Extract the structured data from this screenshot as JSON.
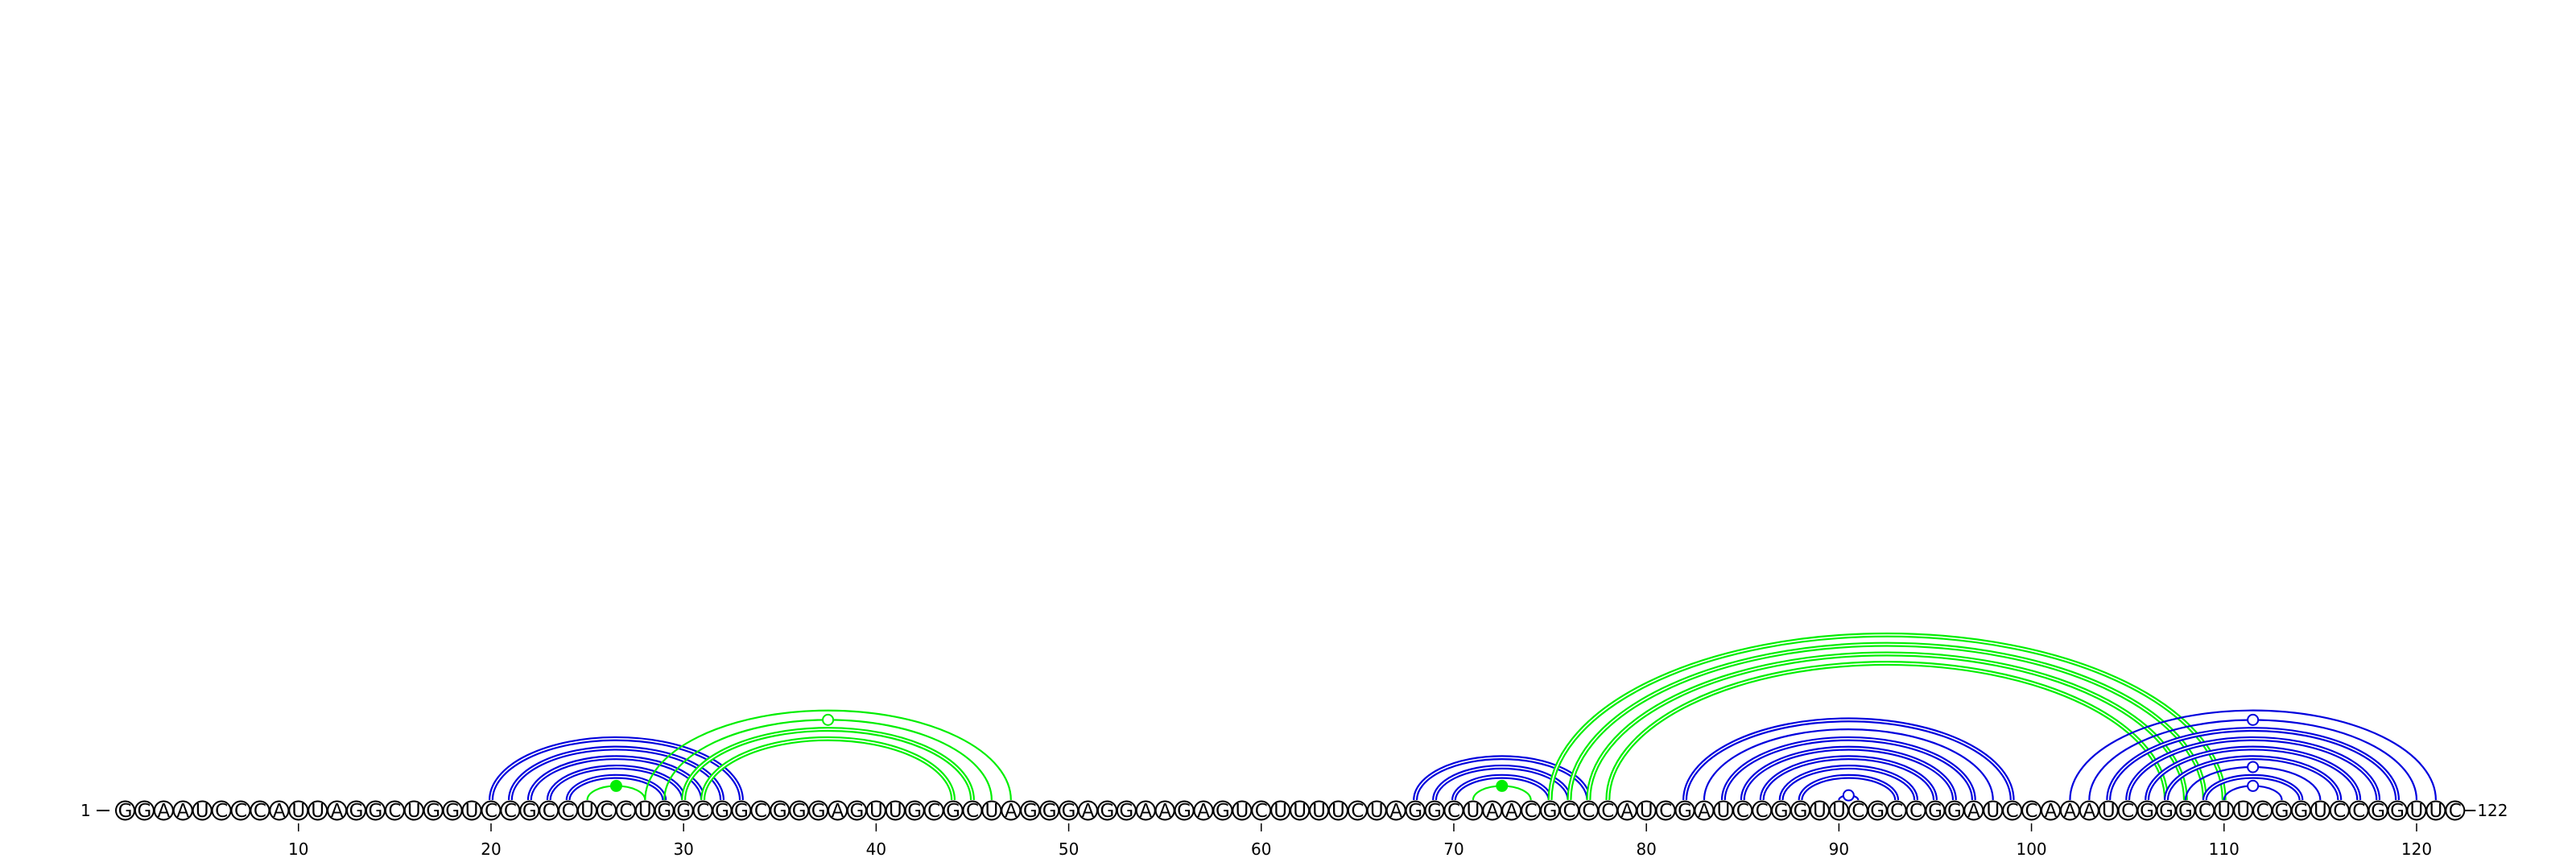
{
  "sequence": "GGAAUCCCAUUAGGCUGGUCCGCCUCCUGGCGGCGGGAGUUGCGCUAGGGAGGAAGAGUCUUUUCUAGGCUAACGCCCAUCGAUCCGGUUCGCCGGAUCCAAAUCGGGCUUCGGUCCGGUUC",
  "start_label": "1",
  "end_label": "122",
  "position_ticks": [
    {
      "pos": 10,
      "label": "10"
    },
    {
      "pos": 20,
      "label": "20"
    },
    {
      "pos": 30,
      "label": "30"
    },
    {
      "pos": 40,
      "label": "40"
    },
    {
      "pos": 50,
      "label": "50"
    },
    {
      "pos": 60,
      "label": "60"
    },
    {
      "pos": 70,
      "label": "70"
    },
    {
      "pos": 80,
      "label": "80"
    },
    {
      "pos": 90,
      "label": "90"
    },
    {
      "pos": 100,
      "label": "100"
    },
    {
      "pos": 110,
      "label": "110"
    },
    {
      "pos": 120,
      "label": "120"
    }
  ],
  "colors": {
    "blue": "#0000dd",
    "green": "#00ee00"
  },
  "arcs": [
    {
      "i": 20,
      "j": 33,
      "color": "blue",
      "style": "double"
    },
    {
      "i": 21,
      "j": 32,
      "color": "blue",
      "style": "double"
    },
    {
      "i": 22,
      "j": 31,
      "color": "blue",
      "style": "double"
    },
    {
      "i": 23,
      "j": 30,
      "color": "blue",
      "style": "double"
    },
    {
      "i": 24,
      "j": 29,
      "color": "blue",
      "style": "double"
    },
    {
      "i": 25,
      "j": 28,
      "color": "green",
      "style": "single",
      "marker": "filled"
    },
    {
      "i": 28,
      "j": 47,
      "color": "green",
      "style": "single"
    },
    {
      "i": 29,
      "j": 46,
      "color": "green",
      "style": "single",
      "marker": "open"
    },
    {
      "i": 30,
      "j": 45,
      "color": "green",
      "style": "double"
    },
    {
      "i": 31,
      "j": 44,
      "color": "green",
      "style": "double"
    },
    {
      "i": 68,
      "j": 77,
      "color": "blue",
      "style": "double"
    },
    {
      "i": 69,
      "j": 76,
      "color": "blue",
      "style": "double"
    },
    {
      "i": 70,
      "j": 75,
      "color": "blue",
      "style": "double"
    },
    {
      "i": 71,
      "j": 74,
      "color": "green",
      "style": "single",
      "marker": "filled"
    },
    {
      "i": 75,
      "j": 110,
      "color": "green",
      "style": "double"
    },
    {
      "i": 76,
      "j": 109,
      "color": "green",
      "style": "double"
    },
    {
      "i": 77,
      "j": 108,
      "color": "green",
      "style": "double"
    },
    {
      "i": 78,
      "j": 107,
      "color": "green",
      "style": "double"
    },
    {
      "i": 82,
      "j": 99,
      "color": "blue",
      "style": "double"
    },
    {
      "i": 83,
      "j": 98,
      "color": "blue",
      "style": "single"
    },
    {
      "i": 84,
      "j": 97,
      "color": "blue",
      "style": "double"
    },
    {
      "i": 85,
      "j": 96,
      "color": "blue",
      "style": "double"
    },
    {
      "i": 86,
      "j": 95,
      "color": "blue",
      "style": "double"
    },
    {
      "i": 87,
      "j": 94,
      "color": "blue",
      "style": "double"
    },
    {
      "i": 88,
      "j": 93,
      "color": "blue",
      "style": "double"
    },
    {
      "i": 90,
      "j": 91,
      "color": "blue",
      "style": "single",
      "marker": "open"
    },
    {
      "i": 102,
      "j": 121,
      "color": "blue",
      "style": "single"
    },
    {
      "i": 103,
      "j": 120,
      "color": "blue",
      "style": "single",
      "marker": "open"
    },
    {
      "i": 104,
      "j": 119,
      "color": "blue",
      "style": "double"
    },
    {
      "i": 105,
      "j": 118,
      "color": "blue",
      "style": "double"
    },
    {
      "i": 106,
      "j": 117,
      "color": "blue",
      "style": "double"
    },
    {
      "i": 107,
      "j": 116,
      "color": "blue",
      "style": "double"
    },
    {
      "i": 108,
      "j": 115,
      "color": "blue",
      "style": "single",
      "marker": "open"
    },
    {
      "i": 109,
      "j": 114,
      "color": "blue",
      "style": "double"
    },
    {
      "i": 110,
      "j": 113,
      "color": "blue",
      "style": "single",
      "marker": "open"
    }
  ]
}
